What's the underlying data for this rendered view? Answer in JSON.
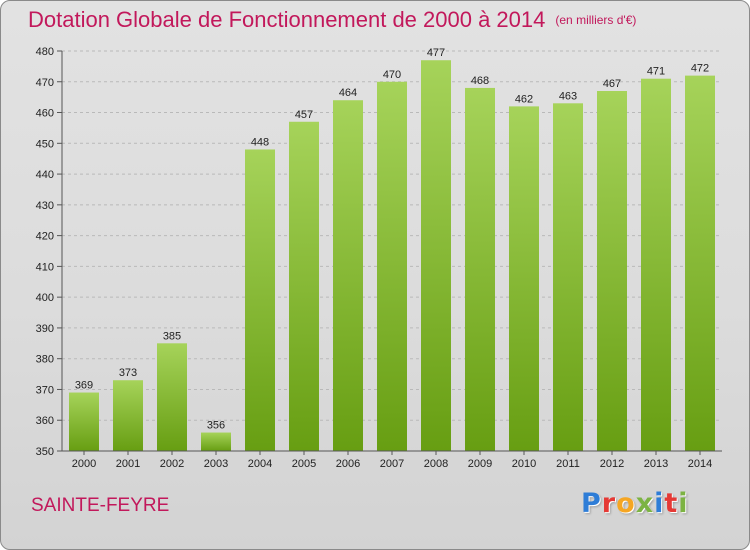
{
  "title": "Dotation Globale de Fonctionnement de 2000 à 2014",
  "unit_note": "(en milliers d'€)",
  "commune": "SAINTE-FEYRE",
  "logo": {
    "text": "Proxiti",
    "letters": [
      {
        "ch": "P",
        "color": "#2e7dd7"
      },
      {
        "ch": "r",
        "color": "#e53935"
      },
      {
        "ch": "o",
        "color": "#f5a623"
      },
      {
        "ch": "x",
        "color": "#7cb342"
      },
      {
        "ch": "i",
        "color": "#2e7dd7"
      },
      {
        "ch": "t",
        "color": "#e53935"
      },
      {
        "ch": "i",
        "color": "#7cb342"
      }
    ]
  },
  "colors": {
    "bar_top": "#a6d35a",
    "bar_bottom": "#679e12",
    "title": "#c2185b",
    "grid": "#b9b9b9"
  },
  "chart_data": {
    "type": "bar",
    "title": "Dotation Globale de Fonctionnement de 2000 à 2014",
    "subtitle": "(en milliers d'€)",
    "xlabel": "",
    "ylabel": "",
    "categories": [
      "2000",
      "2001",
      "2002",
      "2003",
      "2004",
      "2005",
      "2006",
      "2007",
      "2008",
      "2009",
      "2010",
      "2011",
      "2012",
      "2013",
      "2014"
    ],
    "values": [
      369,
      373,
      385,
      356,
      448,
      457,
      464,
      470,
      477,
      468,
      462,
      463,
      467,
      471,
      472
    ],
    "ylim": [
      350,
      480
    ],
    "yticks": [
      350,
      360,
      370,
      380,
      390,
      400,
      410,
      420,
      430,
      440,
      450,
      460,
      470,
      480
    ],
    "grid": true,
    "legend": "none"
  }
}
